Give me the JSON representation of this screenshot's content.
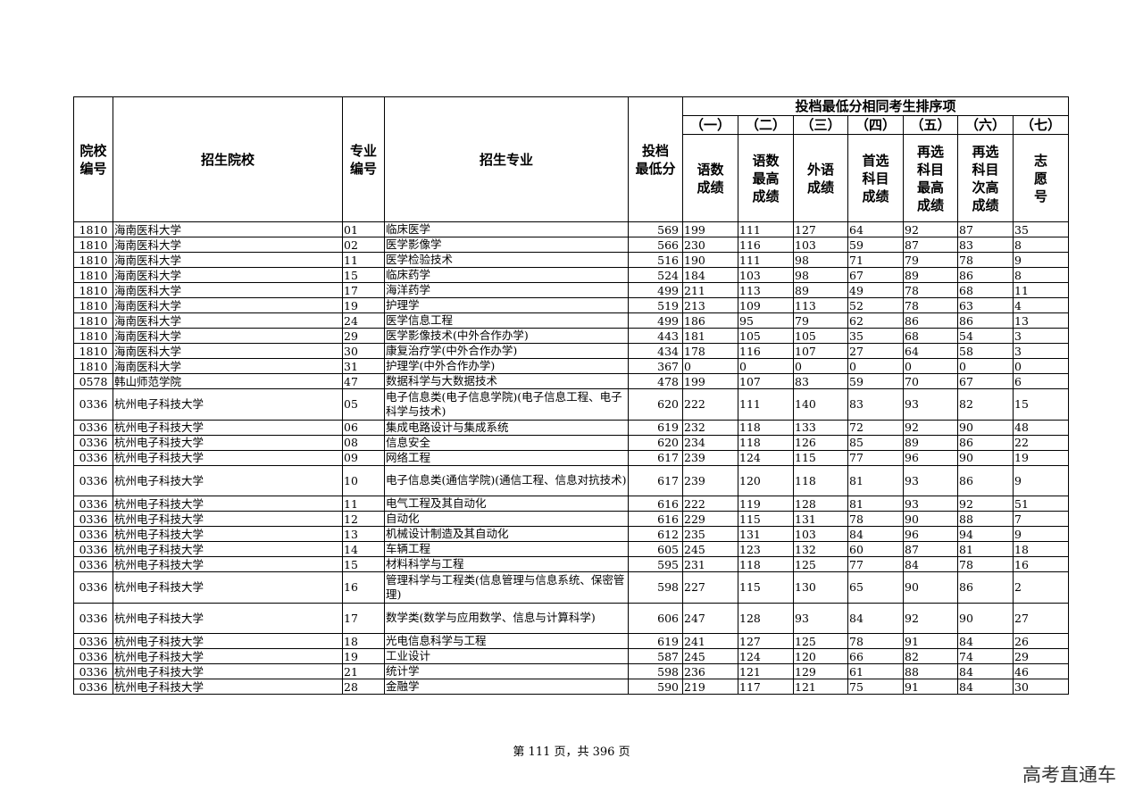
{
  "header": {
    "school_code": "院校\n编号",
    "school": "招生院校",
    "major_code": "专业\n编号",
    "major": "招生专业",
    "min_score": "投档\n最低分",
    "tiebreak_title": "投档最低分相同考生排序项",
    "tiebreak_orders": [
      "（一）",
      "（二）",
      "（三）",
      "（四）",
      "（五）",
      "（六）",
      "（七）"
    ],
    "tiebreak_items": [
      "语数\n成绩",
      "语数\n最高\n成绩",
      "外语\n成绩",
      "首选\n科目\n成绩",
      "再选\n科目\n最高\n成绩",
      "再选\n科目\n次高\n成绩",
      "志\n愿\n号"
    ]
  },
  "rows": [
    [
      "1810",
      "海南医科大学",
      "01",
      "临床医学",
      "569",
      "199",
      "111",
      "127",
      "64",
      "92",
      "87",
      "35"
    ],
    [
      "1810",
      "海南医科大学",
      "02",
      "医学影像学",
      "566",
      "230",
      "116",
      "103",
      "59",
      "87",
      "83",
      "8"
    ],
    [
      "1810",
      "海南医科大学",
      "11",
      "医学检验技术",
      "516",
      "190",
      "111",
      "98",
      "71",
      "79",
      "78",
      "9"
    ],
    [
      "1810",
      "海南医科大学",
      "15",
      "临床药学",
      "524",
      "184",
      "103",
      "98",
      "67",
      "89",
      "86",
      "8"
    ],
    [
      "1810",
      "海南医科大学",
      "17",
      "海洋药学",
      "499",
      "211",
      "113",
      "89",
      "49",
      "78",
      "68",
      "11"
    ],
    [
      "1810",
      "海南医科大学",
      "19",
      "护理学",
      "519",
      "213",
      "109",
      "113",
      "52",
      "78",
      "63",
      "4"
    ],
    [
      "1810",
      "海南医科大学",
      "24",
      "医学信息工程",
      "499",
      "186",
      "95",
      "79",
      "62",
      "86",
      "86",
      "13"
    ],
    [
      "1810",
      "海南医科大学",
      "29",
      "医学影像技术(中外合作办学)",
      "443",
      "181",
      "105",
      "105",
      "35",
      "68",
      "54",
      "3"
    ],
    [
      "1810",
      "海南医科大学",
      "30",
      "康复治疗学(中外合作办学)",
      "434",
      "178",
      "116",
      "107",
      "27",
      "64",
      "58",
      "3"
    ],
    [
      "1810",
      "海南医科大学",
      "31",
      "护理学(中外合作办学)",
      "367",
      "0",
      "0",
      "0",
      "0",
      "0",
      "0",
      "0"
    ],
    [
      "0578",
      "韩山师范学院",
      "47",
      "数据科学与大数据技术",
      "478",
      "199",
      "107",
      "83",
      "59",
      "70",
      "67",
      "6"
    ],
    [
      "0336",
      "杭州电子科技大学",
      "05",
      "电子信息类(电子信息学院)(电子信息工程、电子科学与技术)",
      "620",
      "222",
      "111",
      "140",
      "83",
      "93",
      "82",
      "15"
    ],
    [
      "0336",
      "杭州电子科技大学",
      "06",
      "集成电路设计与集成系统",
      "619",
      "232",
      "118",
      "133",
      "72",
      "92",
      "90",
      "48"
    ],
    [
      "0336",
      "杭州电子科技大学",
      "08",
      "信息安全",
      "620",
      "234",
      "118",
      "126",
      "85",
      "89",
      "86",
      "22"
    ],
    [
      "0336",
      "杭州电子科技大学",
      "09",
      "网络工程",
      "617",
      "239",
      "124",
      "115",
      "77",
      "96",
      "90",
      "19"
    ],
    [
      "0336",
      "杭州电子科技大学",
      "10",
      "电子信息类(通信学院)(通信工程、信息对抗技术)",
      "617",
      "239",
      "120",
      "118",
      "81",
      "93",
      "86",
      "9"
    ],
    [
      "0336",
      "杭州电子科技大学",
      "11",
      "电气工程及其自动化",
      "616",
      "222",
      "119",
      "128",
      "81",
      "93",
      "92",
      "51"
    ],
    [
      "0336",
      "杭州电子科技大学",
      "12",
      "自动化",
      "616",
      "229",
      "115",
      "131",
      "78",
      "90",
      "88",
      "7"
    ],
    [
      "0336",
      "杭州电子科技大学",
      "13",
      "机械设计制造及其自动化",
      "612",
      "235",
      "131",
      "103",
      "84",
      "96",
      "94",
      "9"
    ],
    [
      "0336",
      "杭州电子科技大学",
      "14",
      "车辆工程",
      "605",
      "245",
      "123",
      "132",
      "60",
      "87",
      "81",
      "18"
    ],
    [
      "0336",
      "杭州电子科技大学",
      "15",
      "材料科学与工程",
      "595",
      "231",
      "118",
      "125",
      "77",
      "84",
      "78",
      "16"
    ],
    [
      "0336",
      "杭州电子科技大学",
      "16",
      "管理科学与工程类(信息管理与信息系统、保密管理)",
      "598",
      "227",
      "115",
      "130",
      "65",
      "90",
      "86",
      "2"
    ],
    [
      "0336",
      "杭州电子科技大学",
      "17",
      "数学类(数学与应用数学、信息与计算科学)",
      "606",
      "247",
      "128",
      "93",
      "84",
      "92",
      "90",
      "27"
    ],
    [
      "0336",
      "杭州电子科技大学",
      "18",
      "光电信息科学与工程",
      "619",
      "241",
      "127",
      "125",
      "78",
      "91",
      "84",
      "26"
    ],
    [
      "0336",
      "杭州电子科技大学",
      "19",
      "工业设计",
      "587",
      "245",
      "124",
      "120",
      "66",
      "82",
      "74",
      "29"
    ],
    [
      "0336",
      "杭州电子科技大学",
      "21",
      "统计学",
      "598",
      "236",
      "121",
      "129",
      "61",
      "88",
      "84",
      "46"
    ],
    [
      "0336",
      "杭州电子科技大学",
      "28",
      "金融学",
      "590",
      "219",
      "117",
      "121",
      "75",
      "91",
      "84",
      "30"
    ]
  ],
  "footer": {
    "page_text": "第 111 页，共 396 页"
  },
  "watermark": "高考直通车"
}
